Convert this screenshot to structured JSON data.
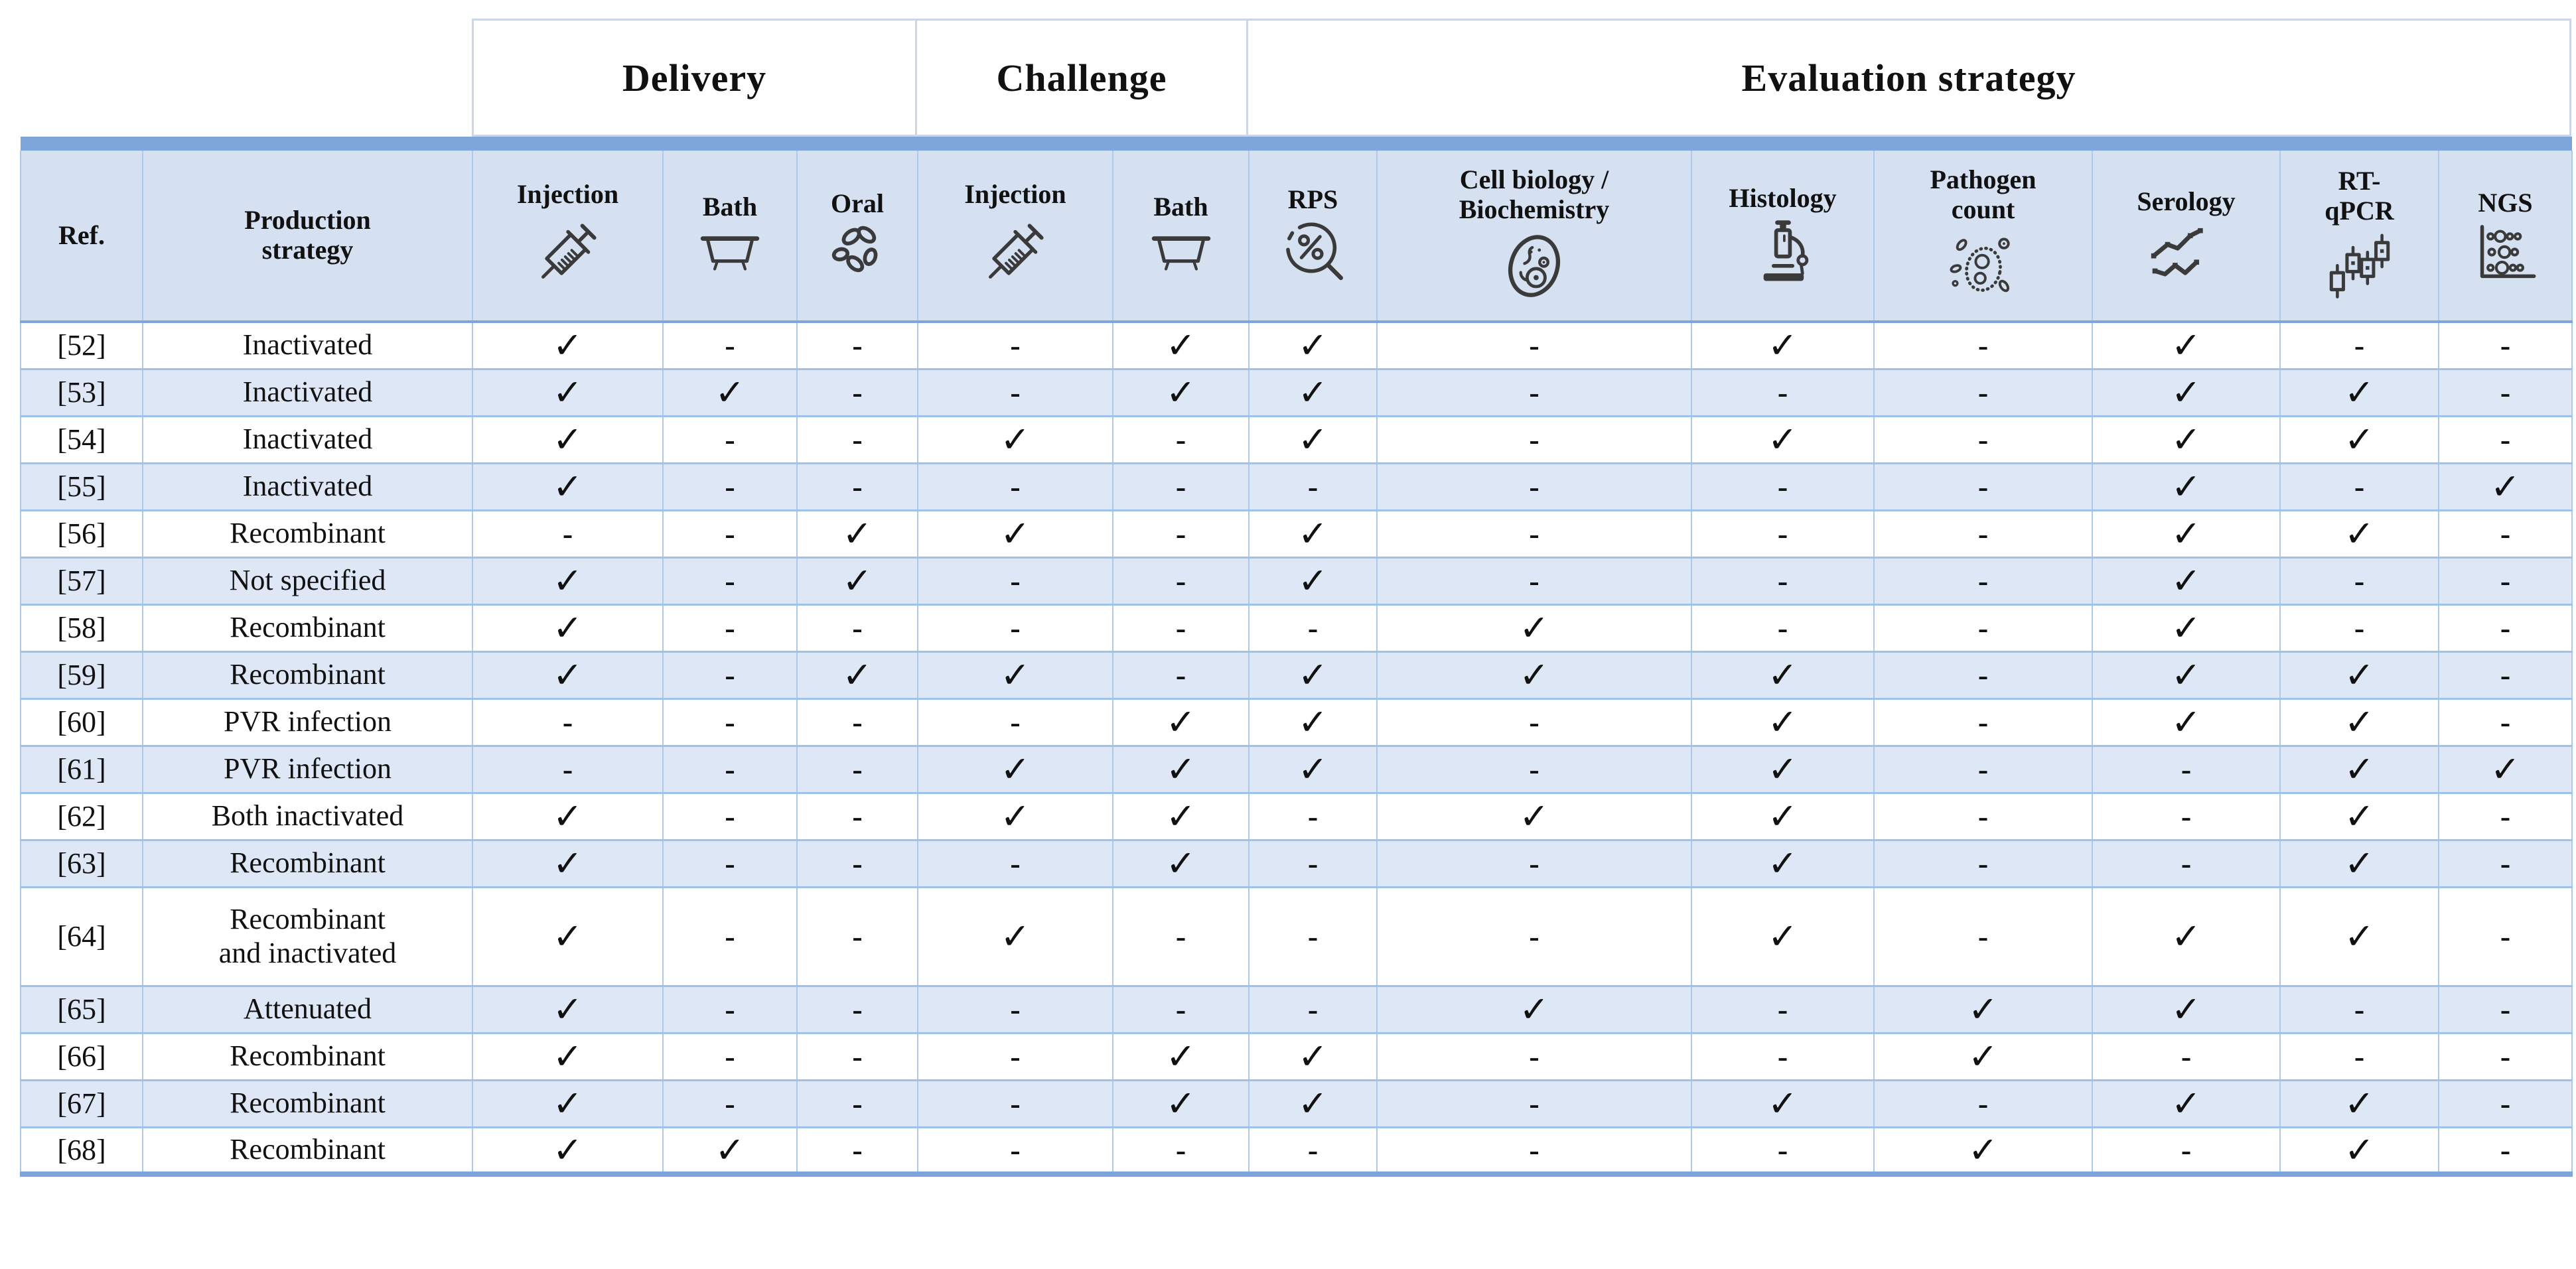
{
  "table": {
    "groups": [
      {
        "id": "delivery",
        "label": "Delivery",
        "columns_spanned": 3
      },
      {
        "id": "challenge",
        "label": "Challenge",
        "columns_spanned": 2
      },
      {
        "id": "evaluation",
        "label": "Evaluation strategy",
        "columns_spanned": 7
      }
    ],
    "columns": [
      {
        "id": "ref",
        "label": "Ref.",
        "icon": null
      },
      {
        "id": "production",
        "label": "Production\nstrategy",
        "icon": null
      },
      {
        "id": "delivery_injection",
        "label": "Injection",
        "icon": "syringe-icon"
      },
      {
        "id": "delivery_bath",
        "label": "Bath",
        "icon": "bath-tub-icon"
      },
      {
        "id": "delivery_oral",
        "label": "Oral",
        "icon": "pills-icon"
      },
      {
        "id": "challenge_injection",
        "label": "Injection",
        "icon": "syringe-icon"
      },
      {
        "id": "challenge_bath",
        "label": "Bath",
        "icon": "bath-tub-icon"
      },
      {
        "id": "rps",
        "label": "RPS",
        "icon": "percent-magnifier-icon"
      },
      {
        "id": "cell_biology",
        "label": "Cell biology /\nBiochemistry",
        "icon": "cell-icon"
      },
      {
        "id": "histology",
        "label": "Histology",
        "icon": "microscope-icon"
      },
      {
        "id": "pathogen_count",
        "label": "Pathogen\ncount",
        "icon": "pathogen-icon"
      },
      {
        "id": "serology",
        "label": "Serology",
        "icon": "trend-lines-icon"
      },
      {
        "id": "rt_qpcr",
        "label": "RT-\nqPCR",
        "icon": "qpcr-plot-icon"
      },
      {
        "id": "ngs",
        "label": "NGS",
        "icon": "sequencing-matrix-icon"
      }
    ],
    "check_symbol": "✓",
    "dash_symbol": "-",
    "rows": [
      {
        "ref": "[52]",
        "production": "Inactivated",
        "tall": false,
        "marks": [
          "✓",
          "-",
          "-",
          "-",
          "✓",
          "✓",
          "-",
          "✓",
          "-",
          "✓",
          "-",
          "-"
        ]
      },
      {
        "ref": "[53]",
        "production": "Inactivated",
        "tall": false,
        "marks": [
          "✓",
          "✓",
          "-",
          "-",
          "✓",
          "✓",
          "-",
          "-",
          "-",
          "✓",
          "✓",
          "-"
        ]
      },
      {
        "ref": "[54]",
        "production": "Inactivated",
        "tall": false,
        "marks": [
          "✓",
          "-",
          "-",
          "✓",
          "-",
          "✓",
          "-",
          "✓",
          "-",
          "✓",
          "✓",
          "-"
        ]
      },
      {
        "ref": "[55]",
        "production": "Inactivated",
        "tall": false,
        "marks": [
          "✓",
          "-",
          "-",
          "-",
          "-",
          "-",
          "-",
          "-",
          "-",
          "✓",
          "-",
          "✓"
        ]
      },
      {
        "ref": "[56]",
        "production": "Recombinant",
        "tall": false,
        "marks": [
          "-",
          "-",
          "✓",
          "✓",
          "-",
          "✓",
          "-",
          "-",
          "-",
          "✓",
          "✓",
          "-"
        ]
      },
      {
        "ref": "[57]",
        "production": "Not specified",
        "tall": false,
        "marks": [
          "✓",
          "-",
          "✓",
          "-",
          "-",
          "✓",
          "-",
          "-",
          "-",
          "✓",
          "-",
          "-"
        ]
      },
      {
        "ref": "[58]",
        "production": "Recombinant",
        "tall": false,
        "marks": [
          "✓",
          "-",
          "-",
          "-",
          "-",
          "-",
          "✓",
          "-",
          "-",
          "✓",
          "-",
          "-"
        ]
      },
      {
        "ref": "[59]",
        "production": "Recombinant",
        "tall": false,
        "marks": [
          "✓",
          "-",
          "✓",
          "✓",
          "-",
          "✓",
          "✓",
          "✓",
          "-",
          "✓",
          "✓",
          "-"
        ]
      },
      {
        "ref": "[60]",
        "production": "PVR infection",
        "tall": false,
        "marks": [
          "-",
          "-",
          "-",
          "-",
          "✓",
          "✓",
          "-",
          "✓",
          "-",
          "✓",
          "✓",
          "-"
        ]
      },
      {
        "ref": "[61]",
        "production": "PVR infection",
        "tall": false,
        "marks": [
          "-",
          "-",
          "-",
          "✓",
          "✓",
          "✓",
          "-",
          "✓",
          "-",
          "-",
          "✓",
          "✓"
        ]
      },
      {
        "ref": "[62]",
        "production": "Both inactivated",
        "tall": false,
        "marks": [
          "✓",
          "-",
          "-",
          "✓",
          "✓",
          "-",
          "✓",
          "✓",
          "-",
          "-",
          "✓",
          "-"
        ]
      },
      {
        "ref": "[63]",
        "production": "Recombinant",
        "tall": false,
        "marks": [
          "✓",
          "-",
          "-",
          "-",
          "✓",
          "-",
          "-",
          "✓",
          "-",
          "-",
          "✓",
          "-"
        ]
      },
      {
        "ref": "[64]",
        "production": "Recombinant\nand inactivated",
        "tall": true,
        "marks": [
          "✓",
          "-",
          "-",
          "✓",
          "-",
          "-",
          "-",
          "✓",
          "-",
          "✓",
          "✓",
          "-"
        ]
      },
      {
        "ref": "[65]",
        "production": "Attenuated",
        "tall": false,
        "marks": [
          "✓",
          "-",
          "-",
          "-",
          "-",
          "-",
          "✓",
          "-",
          "✓",
          "✓",
          "-",
          "-"
        ]
      },
      {
        "ref": "[66]",
        "production": "Recombinant",
        "tall": false,
        "marks": [
          "✓",
          "-",
          "-",
          "-",
          "✓",
          "✓",
          "-",
          "-",
          "✓",
          "-",
          "-",
          "-"
        ]
      },
      {
        "ref": "[67]",
        "production": "Recombinant",
        "tall": false,
        "marks": [
          "✓",
          "-",
          "-",
          "-",
          "✓",
          "✓",
          "-",
          "✓",
          "-",
          "✓",
          "✓",
          "-"
        ]
      },
      {
        "ref": "[68]",
        "production": "Recombinant",
        "tall": false,
        "marks": [
          "✓",
          "✓",
          "-",
          "-",
          "-",
          "-",
          "-",
          "-",
          "✓",
          "-",
          "✓",
          "-"
        ]
      }
    ]
  }
}
